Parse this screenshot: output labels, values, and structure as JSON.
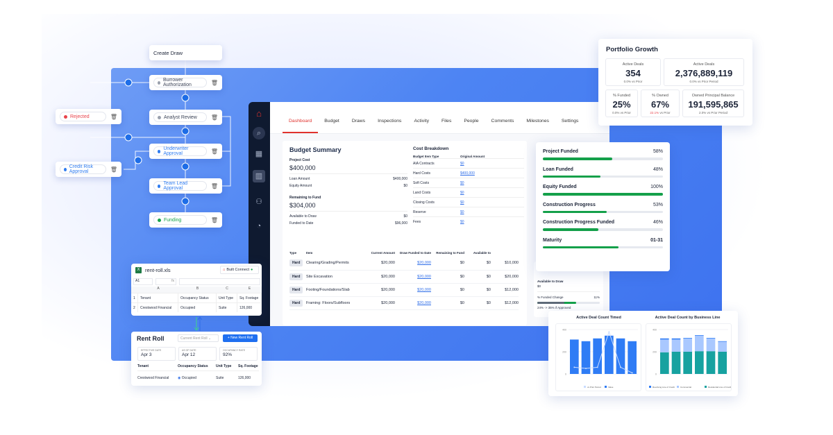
{
  "workflow": {
    "create": "Create Draw",
    "steps": [
      {
        "label": "Burrower Authorization",
        "status_color": "#9aa0ad",
        "text_color": "#3b4357"
      },
      {
        "label": "Analyst Review",
        "status_color": "#9aa0ad",
        "text_color": "#3b4357"
      },
      {
        "label": "Underwriter Approval",
        "status_color": "#2f7cf0",
        "text_color": "#2f7cf0"
      },
      {
        "label": "Team Lead Approval",
        "status_color": "#2f7cf0",
        "text_color": "#2f7cf0"
      },
      {
        "label": "Funding",
        "status_color": "#17a34a",
        "text_color": "#17a34a"
      }
    ],
    "rejected": "Rejected",
    "credit_risk": "Credit Risk Approval"
  },
  "app": {
    "tabs": [
      "Dashboard",
      "Budget",
      "Draws",
      "Inspections",
      "Activity",
      "Files",
      "People",
      "Comments",
      "Milestones",
      "Settings"
    ],
    "active_tab": "Dashboard",
    "sidebar_icons": [
      "logo-icon",
      "search-icon",
      "table-icon",
      "building-icon",
      "user-icon",
      "settings-chart-icon"
    ],
    "budget": {
      "title": "Budget Summary",
      "project_cost_label": "Project Cost",
      "project_cost": "$400,000",
      "loan_label": "Loan Amount",
      "loan": "$400,000",
      "equity_label": "Equity Amount",
      "equity": "$0",
      "remaining_label": "Remaining to Fund",
      "remaining": "$304,000",
      "available_label": "Available to Draw",
      "available": "$0",
      "funded_label": "Funded to Date",
      "funded": "$96,000"
    },
    "cost_breakdown": {
      "title": "Cost Breakdown",
      "col1": "Budget Item Type",
      "col2": "Original Amount",
      "rows": [
        [
          "AIA Contracts",
          "$0"
        ],
        [
          "Hard Costs",
          "$400,000"
        ],
        [
          "Soft Costs",
          "$0"
        ],
        [
          "Land Costs",
          "$0"
        ],
        [
          "Closing Costs",
          "$0"
        ],
        [
          "Reserve",
          "$0"
        ],
        [
          "Fees",
          "$0"
        ]
      ]
    },
    "table": {
      "headers": [
        "Type",
        "Item",
        "Current Amount",
        "Draw Funded to Date",
        "Remaining to Fund",
        "Available to"
      ],
      "rows": [
        [
          "Hard",
          "Clearing/Grading/Permits",
          "$20,000",
          "$20,000",
          "$0",
          "$0",
          "$10,000"
        ],
        [
          "Hard",
          "Site Excavation",
          "$20,000",
          "$20,000",
          "$0",
          "$0",
          "$20,000"
        ],
        [
          "Hard",
          "Footing/Foundations/Slab",
          "$20,000",
          "$20,000",
          "$0",
          "$0",
          "$12,000"
        ],
        [
          "Hard",
          "Framing: Floors/Subfloors",
          "$20,000",
          "$20,000",
          "$0",
          "$0",
          "$12,000"
        ]
      ]
    },
    "under_card": {
      "available_label": "Available to Draw",
      "available": "$0",
      "change_label": "% Funded Change",
      "change": "11%",
      "change_note": "24% -> 35% if Approved",
      "base_progress": 24,
      "approved_progress": 35
    }
  },
  "progress": {
    "items": [
      {
        "label": "Project Funded",
        "value": "58%",
        "fill": 58
      },
      {
        "label": "Loan Funded",
        "value": "48%",
        "fill": 48
      },
      {
        "label": "Equity Funded",
        "value": "100%",
        "fill": 100
      },
      {
        "label": "Construction Progress",
        "value": "53%",
        "fill": 53
      },
      {
        "label": "Construction Progress Funded",
        "value": "46%",
        "fill": 46
      },
      {
        "label": "Maturity",
        "value": "01-31",
        "fill": 63
      }
    ],
    "bar_color": "#14a04a"
  },
  "portfolio": {
    "title": "Portfolio Growth",
    "kpis": [
      {
        "label": "Active Deals",
        "value": "354",
        "sub": "0.0% vs Prior"
      },
      {
        "label": "Active Deals",
        "value": "2,376,889,119",
        "sub": "0.0% vs Prior Period"
      },
      {
        "label": "% Funded",
        "value": "25%",
        "sub": "0.0% vs Prior"
      },
      {
        "label": "% Owned",
        "value": "67%",
        "sub": "22.1%",
        "sub2": "vs Prior"
      },
      {
        "label": "Owned Principal Balance",
        "value": "191,595,865",
        "sub": "2.0% vs Prior Period"
      }
    ]
  },
  "spreadsheet": {
    "filename": "rent-roll.xls",
    "connect": "Built Connect",
    "cell_ref": "A1",
    "fx": "fx",
    "cols": [
      "A",
      "B",
      "C",
      "E"
    ],
    "rows": [
      [
        "1",
        "Tenant",
        "Occupancy Status",
        "Unit Type",
        "Sq. Footage"
      ],
      [
        "2",
        "Crestwood Financial",
        "Occupied",
        "Suite",
        "126,000"
      ]
    ]
  },
  "rent_roll": {
    "title": "Rent Roll",
    "select": "Current Rent Roll",
    "new_button": "+ New Rent Roll",
    "stats": [
      {
        "label": "EFFECTIVE DATE",
        "value": "Apr 3"
      },
      {
        "label": "AS OF DATE",
        "value": "Apr 12"
      },
      {
        "label": "OCCUPANCY RATE",
        "value": "92%"
      }
    ],
    "headers": [
      "Tenant",
      "Occupancy Status",
      "Unit Type",
      "Sq. Footage"
    ],
    "row": [
      "Crestwood Financial",
      "Occupied",
      "Suite",
      "126,000"
    ]
  },
  "chart_data": [
    {
      "type": "bar",
      "title": "Active Deal Count Timed",
      "ylim": [
        0,
        400
      ],
      "yticks": [
        "0",
        "200",
        "400"
      ],
      "series": [
        {
          "name": "Value",
          "type": "bar",
          "values": [
            310,
            295,
            320,
            345,
            320,
            295
          ],
          "color": "#2f7cf5"
        },
        {
          "name": "vs Prior Period",
          "type": "line",
          "values": [
            60,
            50,
            60,
            380,
            60,
            10
          ],
          "color": "#c9dcff"
        }
      ]
    },
    {
      "type": "bar",
      "stacked": true,
      "title": "Active Deal Count by Business Line",
      "ylim": [
        0,
        400
      ],
      "yticks": [
        "0",
        "200",
        "400"
      ],
      "series": [
        {
          "name": "Residential Line of Credit",
          "values": [
            195,
            200,
            200,
            205,
            205,
            200
          ],
          "color": "#17a2a0"
        },
        {
          "name": "Commercial",
          "values": [
            115,
            110,
            120,
            140,
            115,
            90
          ],
          "color": "#a9c8ff"
        },
        {
          "name": "Revolving Line of Credit",
          "values": [
            10,
            10,
            5,
            5,
            5,
            5
          ],
          "color": "#2f7cf5"
        }
      ]
    }
  ]
}
